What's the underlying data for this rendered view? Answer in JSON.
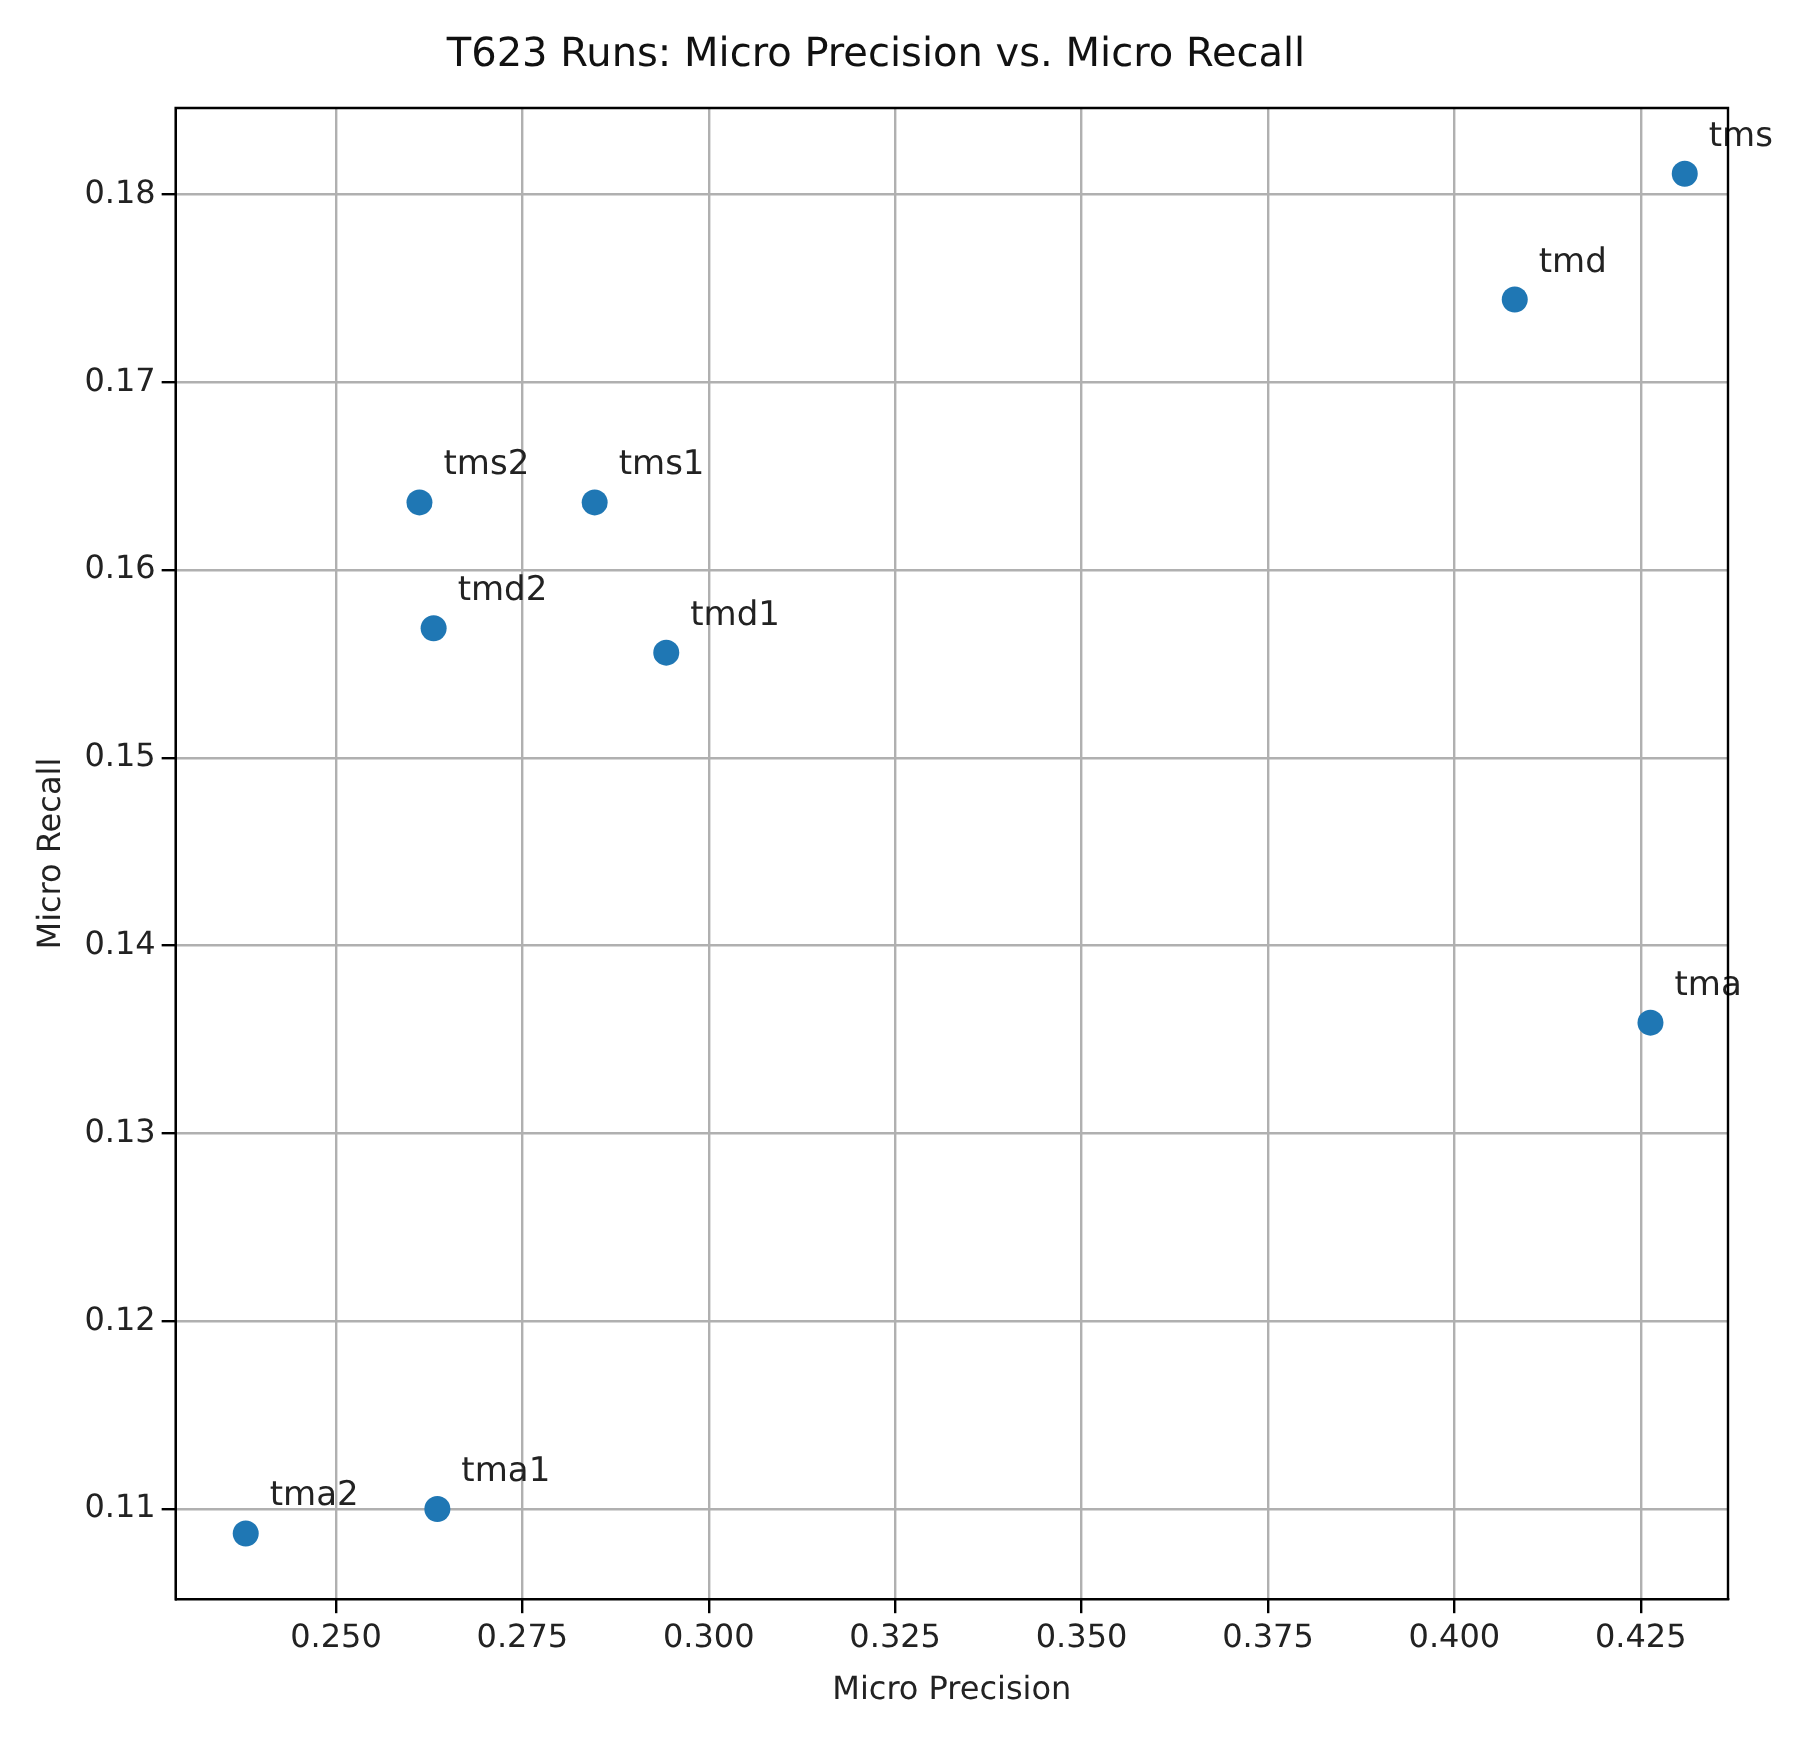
{
  "chart_data": {
    "type": "scatter",
    "title": "T623 Runs: Micro Precision vs. Micro Recall",
    "xlabel": "Micro Precision",
    "ylabel": "Micro Recall",
    "x": [
      0.4309,
      0.4081,
      0.2612,
      0.2847,
      0.2631,
      0.2943,
      0.4263,
      0.2636,
      0.2379
    ],
    "series": [
      {
        "color": "#1f77b4",
        "values": [
          0.1811,
          0.1744,
          0.1636,
          0.1636,
          0.1569,
          0.1556,
          0.1359,
          0.11,
          0.1087
        ]
      }
    ],
    "annotations": [
      {
        "text": "tms",
        "x": 0.4309,
        "y": 0.1811
      },
      {
        "text": "tmd",
        "x": 0.4081,
        "y": 0.1744
      },
      {
        "text": "tms2",
        "x": 0.2612,
        "y": 0.1636
      },
      {
        "text": "tms1",
        "x": 0.2847,
        "y": 0.1636
      },
      {
        "text": "tmd2",
        "x": 0.2631,
        "y": 0.1569
      },
      {
        "text": "tmd1",
        "x": 0.2943,
        "y": 0.1556
      },
      {
        "text": "tma",
        "x": 0.4263,
        "y": 0.1359
      },
      {
        "text": "tma1",
        "x": 0.2636,
        "y": 0.11
      },
      {
        "text": "tma2",
        "x": 0.2379,
        "y": 0.1087
      }
    ],
    "xlim": [
      0.2285,
      0.4367
    ],
    "xticks": [
      {
        "value": 0.25,
        "label": "0.250"
      },
      {
        "value": 0.275,
        "label": "0.275"
      },
      {
        "value": 0.3,
        "label": "0.300"
      },
      {
        "value": 0.325,
        "label": "0.325"
      },
      {
        "value": 0.35,
        "label": "0.350"
      },
      {
        "value": 0.375,
        "label": "0.375"
      },
      {
        "value": 0.4,
        "label": "0.400"
      },
      {
        "value": 0.425,
        "label": "0.425"
      }
    ],
    "ylim": [
      0.1052,
      0.1846
    ],
    "yticks": [
      0.11,
      0.12,
      0.13,
      0.14,
      0.15,
      0.16,
      0.17,
      0.18
    ],
    "grid": true,
    "legend": false,
    "marker": "circle"
  }
}
